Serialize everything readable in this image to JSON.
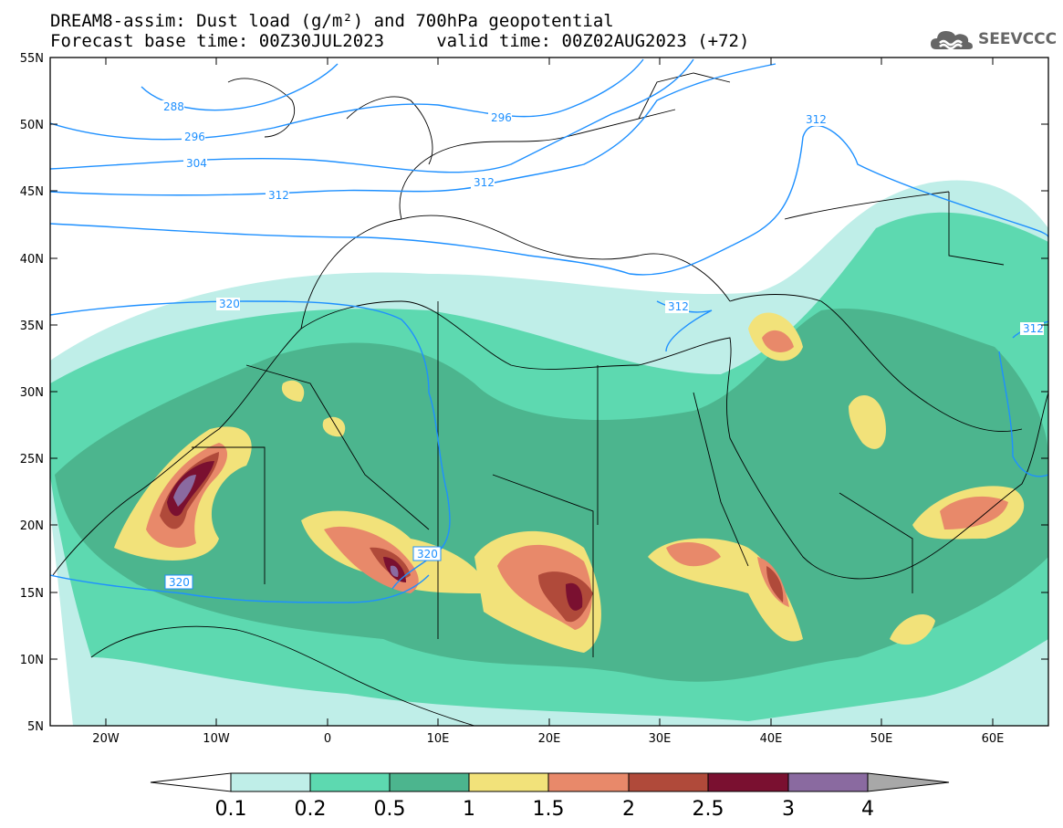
{
  "title_line1": "DREAM8-assim: Dust load (g/m²) and 700hPa geopotential",
  "title_line2": "Forecast base time: 00Z30JUL2023     valid time: 00Z02AUG2023 (+72)",
  "logo_text": "SEEVCCC",
  "map": {
    "lon_range": [
      -25,
      65
    ],
    "lat_range": [
      5,
      55
    ],
    "lat_labels": [
      "55N",
      "50N",
      "45N",
      "40N",
      "35N",
      "30N",
      "25N",
      "20N",
      "15N",
      "10N",
      "5N"
    ],
    "lon_labels": [
      "20W",
      "10W",
      "0",
      "10E",
      "20E",
      "30E",
      "40E",
      "50E",
      "60E"
    ],
    "geopotential_contour_labels": [
      "288",
      "296",
      "296",
      "304",
      "312",
      "312",
      "312",
      "312",
      "312",
      "320",
      "320",
      "320"
    ]
  },
  "colorbar": {
    "labels": [
      "0.1",
      "0.2",
      "0.5",
      "1",
      "1.5",
      "2",
      "2.5",
      "3",
      "4"
    ],
    "colors": [
      "#ffffff",
      "#bfeee8",
      "#5dd9b0",
      "#4cb58e",
      "#f2e27a",
      "#e8896a",
      "#b04a3a",
      "#7a1030",
      "#8a6aa0",
      "#a8a8a8"
    ]
  }
}
